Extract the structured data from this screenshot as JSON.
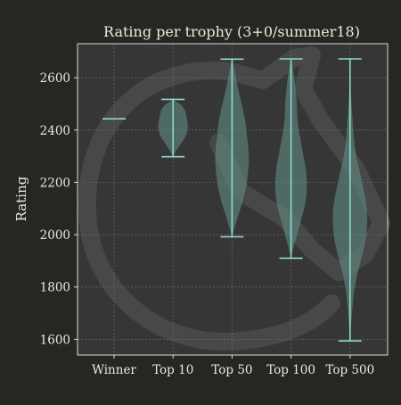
{
  "chart_data": {
    "type": "violin",
    "title": "Rating per trophy (3+0/summer18)",
    "xlabel": "",
    "ylabel": "Rating",
    "categories": [
      "Winner",
      "Top 10",
      "Top 50",
      "Top 100",
      "Top 500"
    ],
    "ylim": [
      1540,
      2730
    ],
    "yticks": [
      1600,
      1800,
      2000,
      2200,
      2400,
      2600
    ],
    "grid": true,
    "series": [
      {
        "category": "Winner",
        "min": 2443,
        "max": 2443,
        "profile": []
      },
      {
        "category": "Top 10",
        "min": 2298,
        "max": 2517,
        "profile": [
          [
            2298,
            0.0
          ],
          [
            2320,
            0.12
          ],
          [
            2345,
            0.3
          ],
          [
            2370,
            0.48
          ],
          [
            2390,
            0.58
          ],
          [
            2410,
            0.62
          ],
          [
            2430,
            0.6
          ],
          [
            2450,
            0.56
          ],
          [
            2475,
            0.5
          ],
          [
            2495,
            0.35
          ],
          [
            2517,
            0.0
          ]
        ]
      },
      {
        "category": "Top 50",
        "min": 1992,
        "max": 2671,
        "profile": [
          [
            1992,
            0.0
          ],
          [
            2030,
            0.12
          ],
          [
            2080,
            0.28
          ],
          [
            2130,
            0.45
          ],
          [
            2180,
            0.58
          ],
          [
            2230,
            0.66
          ],
          [
            2280,
            0.7
          ],
          [
            2330,
            0.68
          ],
          [
            2380,
            0.62
          ],
          [
            2430,
            0.56
          ],
          [
            2480,
            0.45
          ],
          [
            2530,
            0.32
          ],
          [
            2580,
            0.2
          ],
          [
            2630,
            0.1
          ],
          [
            2671,
            0.0
          ]
        ]
      },
      {
        "category": "Top 100",
        "min": 1910,
        "max": 2672,
        "profile": [
          [
            1910,
            0.0
          ],
          [
            1950,
            0.1
          ],
          [
            2000,
            0.25
          ],
          [
            2050,
            0.4
          ],
          [
            2100,
            0.55
          ],
          [
            2150,
            0.64
          ],
          [
            2200,
            0.66
          ],
          [
            2250,
            0.62
          ],
          [
            2300,
            0.52
          ],
          [
            2350,
            0.42
          ],
          [
            2400,
            0.32
          ],
          [
            2450,
            0.26
          ],
          [
            2500,
            0.24
          ],
          [
            2550,
            0.2
          ],
          [
            2600,
            0.14
          ],
          [
            2672,
            0.0
          ]
        ]
      },
      {
        "category": "Top 500",
        "min": 1594,
        "max": 2672,
        "profile": [
          [
            1594,
            0.0
          ],
          [
            1650,
            0.04
          ],
          [
            1700,
            0.08
          ],
          [
            1780,
            0.16
          ],
          [
            1850,
            0.3
          ],
          [
            1900,
            0.45
          ],
          [
            1950,
            0.58
          ],
          [
            2000,
            0.68
          ],
          [
            2050,
            0.72
          ],
          [
            2100,
            0.7
          ],
          [
            2150,
            0.62
          ],
          [
            2200,
            0.5
          ],
          [
            2250,
            0.38
          ],
          [
            2300,
            0.26
          ],
          [
            2350,
            0.18
          ],
          [
            2400,
            0.13
          ],
          [
            2450,
            0.1
          ],
          [
            2500,
            0.06
          ],
          [
            2550,
            0.03
          ],
          [
            2600,
            0.015
          ],
          [
            2672,
            0.0
          ]
        ]
      }
    ],
    "colors": {
      "figure_bg": "#262622",
      "axes_bg": "#363636",
      "violin_fill": "#5f8a82",
      "violin_line": "#8fd8cc",
      "grid": "#6a6a6a",
      "spine": "#d8d8d8",
      "text": "#ece8dc",
      "watermark": "#4a4a4a"
    }
  }
}
